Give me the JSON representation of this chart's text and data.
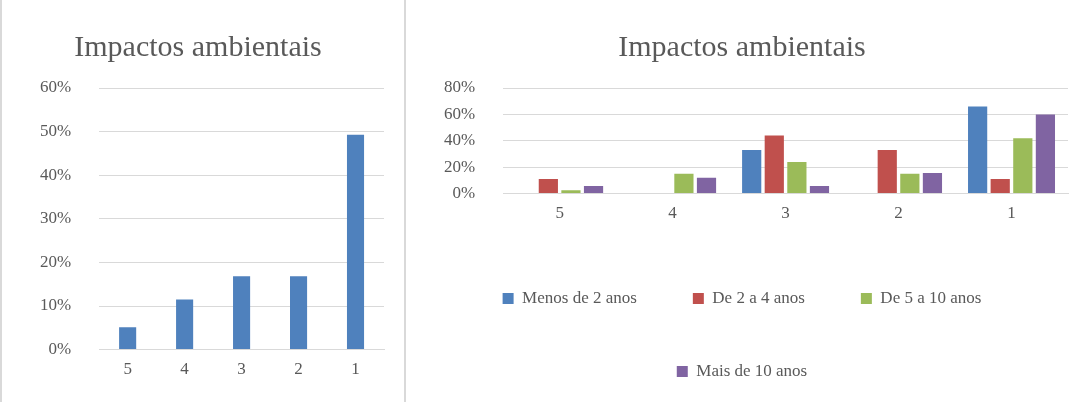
{
  "chart_data": [
    {
      "type": "bar",
      "title": "Impactos ambientais",
      "categories": [
        "5",
        "4",
        "3",
        "2",
        "1"
      ],
      "values": [
        5.1,
        11.5,
        16.8,
        16.8,
        49.3
      ],
      "color": "#4f81bd",
      "ylim": [
        0,
        60
      ],
      "yticks": [
        {
          "value": 0,
          "label": "0%"
        },
        {
          "value": 10,
          "label": "10%"
        },
        {
          "value": 20,
          "label": "20%"
        },
        {
          "value": 30,
          "label": "30%"
        },
        {
          "value": 40,
          "label": "40%"
        },
        {
          "value": 50,
          "label": "50%"
        },
        {
          "value": 60,
          "label": "60%"
        }
      ],
      "grid": "y"
    },
    {
      "type": "bar",
      "title": "Impactos ambientais",
      "categories": [
        "5",
        "4",
        "3",
        "2",
        "1"
      ],
      "series": [
        {
          "name": "Menos de 2 anos",
          "color": "#4f81bd",
          "values": [
            0,
            0,
            33,
            0,
            66
          ]
        },
        {
          "name": "De 2 a 4 anos",
          "color": "#c0504d",
          "values": [
            11,
            0,
            44,
            33,
            11
          ]
        },
        {
          "name": "De 5 a 10 anos",
          "color": "#9bbb59",
          "values": [
            2.6,
            15,
            24,
            15,
            42
          ]
        },
        {
          "name": "Mais de 10 anos",
          "color": "#8064a2",
          "values": [
            5.7,
            12,
            5.7,
            15.6,
            60
          ]
        }
      ],
      "ylim": [
        0,
        80
      ],
      "yticks": [
        {
          "value": 0,
          "label": "0%"
        },
        {
          "value": 20,
          "label": "20%"
        },
        {
          "value": 40,
          "label": "40%"
        },
        {
          "value": 60,
          "label": "60%"
        },
        {
          "value": 80,
          "label": "80%"
        }
      ],
      "grid": "y",
      "legend": "bottom"
    }
  ]
}
